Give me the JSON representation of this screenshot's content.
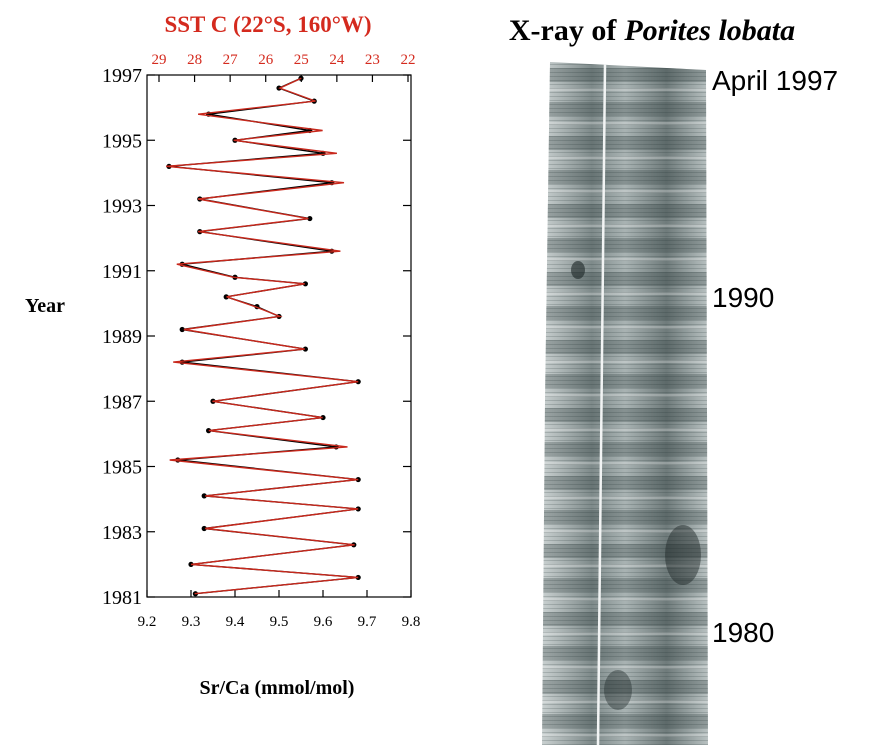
{
  "chart_data": {
    "type": "line",
    "title": "SST  C (22°S, 160°W)",
    "ylabel": "Year",
    "xlabel": "Sr/Ca (mmol/mol)",
    "years": [
      1981.1,
      1981.6,
      1982.0,
      1982.6,
      1983.1,
      1983.7,
      1984.1,
      1984.6,
      1985.2,
      1985.6,
      1986.1,
      1986.5,
      1987.0,
      1987.6,
      1988.2,
      1988.6,
      1989.2,
      1989.6,
      1989.9,
      1990.2,
      1990.6,
      1990.8,
      1991.2,
      1991.6,
      1992.2,
      1992.6,
      1993.2,
      1993.7,
      1994.2,
      1994.6,
      1995.0,
      1995.3,
      1995.8,
      1996.2,
      1996.6,
      1996.9
    ],
    "ylim": [
      1981,
      1997
    ],
    "yticks": [
      1981,
      1983,
      1985,
      1987,
      1989,
      1991,
      1993,
      1995,
      1997
    ],
    "xlim": [
      9.2,
      9.8
    ],
    "xticks": [
      9.2,
      9.3,
      9.4,
      9.5,
      9.6,
      9.7,
      9.8
    ],
    "x2lim": [
      29,
      22
    ],
    "x2ticks": [
      29,
      28,
      27,
      26,
      25,
      24,
      23,
      22
    ],
    "x2color": "#d42a1e",
    "series": [
      {
        "color": "#000000",
        "markers": true,
        "values": [
          9.31,
          9.68,
          9.3,
          9.67,
          9.33,
          9.68,
          9.33,
          9.68,
          9.27,
          9.63,
          9.34,
          9.6,
          9.35,
          9.68,
          9.28,
          9.56,
          9.28,
          9.5,
          9.45,
          9.38,
          9.56,
          9.4,
          9.28,
          9.62,
          9.32,
          9.57,
          9.32,
          9.62,
          9.25,
          9.6,
          9.4,
          9.57,
          9.34,
          9.58,
          9.5,
          9.55
        ]
      },
      {
        "color": "#c8281c",
        "axis": "x2",
        "values": [
          28.0,
          23.4,
          28.1,
          23.5,
          27.7,
          23.4,
          27.7,
          23.4,
          28.7,
          23.7,
          27.6,
          24.4,
          27.5,
          23.4,
          28.6,
          24.9,
          28.3,
          25.6,
          26.3,
          27.1,
          24.9,
          26.9,
          28.5,
          23.9,
          27.9,
          24.8,
          27.9,
          23.8,
          28.8,
          24.0,
          26.9,
          24.4,
          27.9,
          24.6,
          25.6,
          25.0
        ]
      }
    ]
  },
  "xray": {
    "title": [
      "X-ray of",
      "Porites lobata"
    ],
    "labels": [
      "April 1997",
      "1990",
      "1980"
    ]
  }
}
